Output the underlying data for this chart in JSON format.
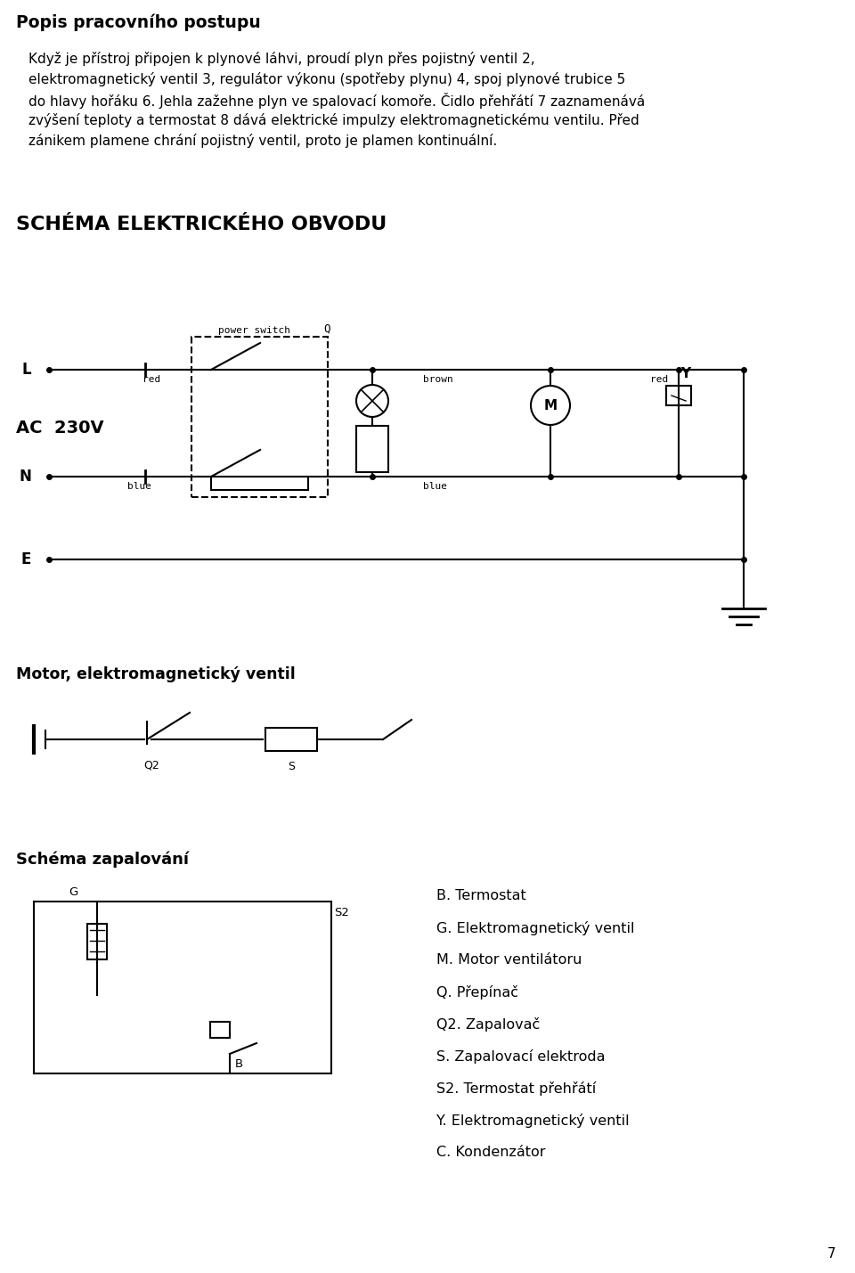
{
  "title": "Popis pracovního postupu",
  "para_lines": [
    "Když je přístroj připojen k plynové láhvi, proudí plyn přes pojistný ventil 2,",
    "elektromagnetický ventil 3, regulátor výkonu (spotřeby plynu) 4, spoj plynové trubice 5",
    "do hlavy hořáku 6. Jehla zažehne plyn ve spalovací komoře. Čidlo přehřátí 7 zaznamenává",
    "zvýšení teploty a termostat 8 dává elektrické impulzy elektromagnetickému ventilu. Před",
    "zánikem plamene chrání pojistný ventil, proto je plamen kontinuální."
  ],
  "schema_title": "SCHÉMA ELEKTRICKÉHO OBVODU",
  "motor_label": "Motor, elektromagnetický ventil",
  "schema_zapalovani": "Schéma zapalování",
  "legend": [
    "B. Termostat",
    "G. Elektromagnetický ventil",
    "M. Motor ventilátoru",
    "Q. Přepínač",
    "Q2. Zapalovač",
    "S. Zapalovací elektroda",
    "S2. Termostat přehřátí",
    "Y. Elektromagnetický ventil",
    "C. Kondenzátor"
  ],
  "page_number": "7",
  "bg_color": "#ffffff",
  "fg_color": "#000000",
  "lw": 1.5,
  "ac_label": "AC  230V"
}
